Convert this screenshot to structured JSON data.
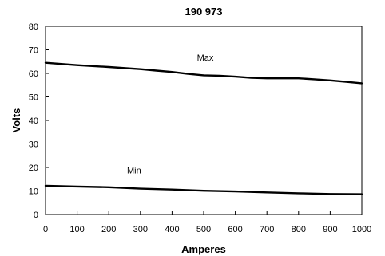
{
  "chart_data": {
    "type": "line",
    "title": "190 973",
    "xlabel": "Amperes",
    "ylabel": "Volts",
    "xlim": [
      0,
      1000
    ],
    "ylim": [
      0,
      80
    ],
    "x_ticks": [
      0,
      100,
      200,
      300,
      400,
      500,
      600,
      700,
      800,
      900,
      1000
    ],
    "y_ticks": [
      0,
      10,
      20,
      30,
      40,
      50,
      60,
      70,
      80
    ],
    "grid": false,
    "legend": "none",
    "series": [
      {
        "name": "Max",
        "x": [
          0,
          100,
          200,
          300,
          350,
          400,
          450,
          500,
          550,
          600,
          650,
          700,
          750,
          800,
          850,
          900,
          950,
          1000
        ],
        "y": [
          64.5,
          63.5,
          62.7,
          61.8,
          61.2,
          60.6,
          59.8,
          59.2,
          59.0,
          58.6,
          58.1,
          57.9,
          57.9,
          57.9,
          57.5,
          57.0,
          56.4,
          55.8
        ]
      },
      {
        "name": "Min",
        "x": [
          0,
          100,
          200,
          300,
          400,
          500,
          600,
          700,
          800,
          900,
          1000
        ],
        "y": [
          12.2,
          11.9,
          11.6,
          11.0,
          10.6,
          10.1,
          9.8,
          9.4,
          9.0,
          8.7,
          8.6
        ]
      }
    ],
    "annotations": [
      {
        "text": "Max",
        "x": 505,
        "y": 65.5
      },
      {
        "text": "Min",
        "x": 280,
        "y": 17.5
      }
    ]
  }
}
